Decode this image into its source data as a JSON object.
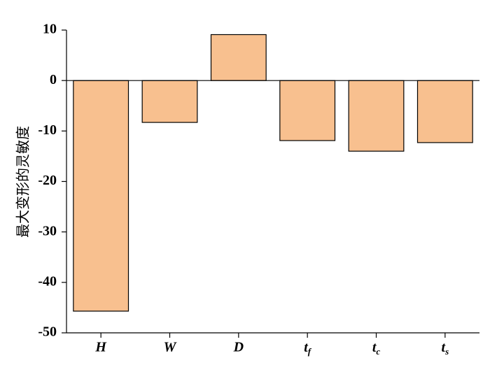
{
  "chart_data": {
    "type": "bar",
    "y_label": "最大变形的灵敏度",
    "categories": [
      "H",
      "W",
      "D",
      "tf",
      "tc",
      "ts"
    ],
    "values": [
      -45.7,
      -8.3,
      9.1,
      -11.9,
      -14.0,
      -12.3
    ],
    "color": "#f8c08f",
    "ylim": [
      -50,
      10
    ],
    "yticks": [
      -50,
      -40,
      -30,
      -20,
      -10,
      0,
      10
    ],
    "grid": false
  }
}
